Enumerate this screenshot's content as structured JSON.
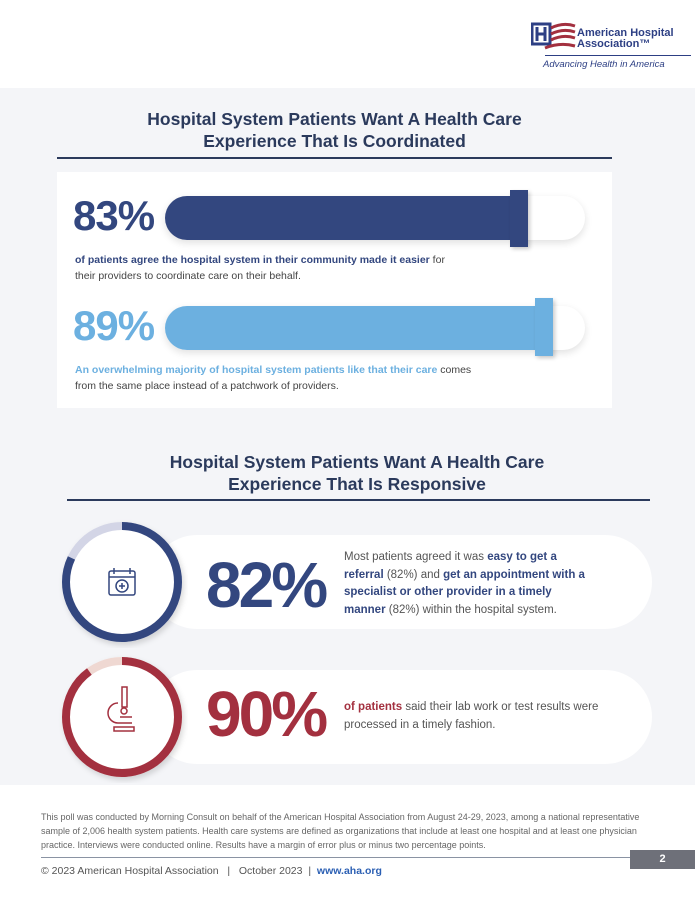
{
  "logo": {
    "name_line1": "American Hospital",
    "name_line2": "Association™",
    "tagline": "Advancing Health in America"
  },
  "colors": {
    "navy": "#33477f",
    "light_blue": "#6cb0e0",
    "red": "#a3303f",
    "heading": "#2b3a5c"
  },
  "section1": {
    "title_line1": "Hospital System Patients Want A Health Care",
    "title_line2": "Experience That Is Coordinated",
    "stats": [
      {
        "value": "83%",
        "percent": 83,
        "bold_text": "of patients agree the hospital system in their community made it easier",
        "text": " for their providers to coordinate care on their behalf."
      },
      {
        "value": "89%",
        "percent": 89,
        "bold_text": "An overwhelming majority of hospital system patients like that their care",
        "text": " comes from the same place instead of a patchwork of providers."
      }
    ]
  },
  "section2": {
    "title_line1": "Hospital System Patients Want A Health Care",
    "title_line2": "Experience That Is Responsive",
    "stats": [
      {
        "value": "82%",
        "percent": 82,
        "icon": "calendar-plus-icon",
        "t1": "Most patients agreed it was ",
        "b1": "easy to get a referral",
        "t2": " (82%) and ",
        "b2": "get an appointment with a specialist or other provider in a timely manner",
        "t3": " (82%) within the hospital system."
      },
      {
        "value": "90%",
        "percent": 90,
        "icon": "microscope-icon",
        "b1": "of patients",
        "t1": " said their lab work or test results were processed in a timely fashion."
      }
    ]
  },
  "footer": {
    "methodology": "This poll was conducted by Morning Consult on behalf of the American Hospital Association from August 24-29, 2023, among a national representative sample of 2,006 health system patients. Health care systems are defined as organizations that include at least one hospital and at least one physician practice. Interviews were conducted online. Results have a margin of error plus or minus two percentage points.",
    "copyright": "© 2023 American Hospital Association",
    "sep": "|",
    "date": "October 2023",
    "url": "www.aha.org",
    "page_number": "2"
  }
}
